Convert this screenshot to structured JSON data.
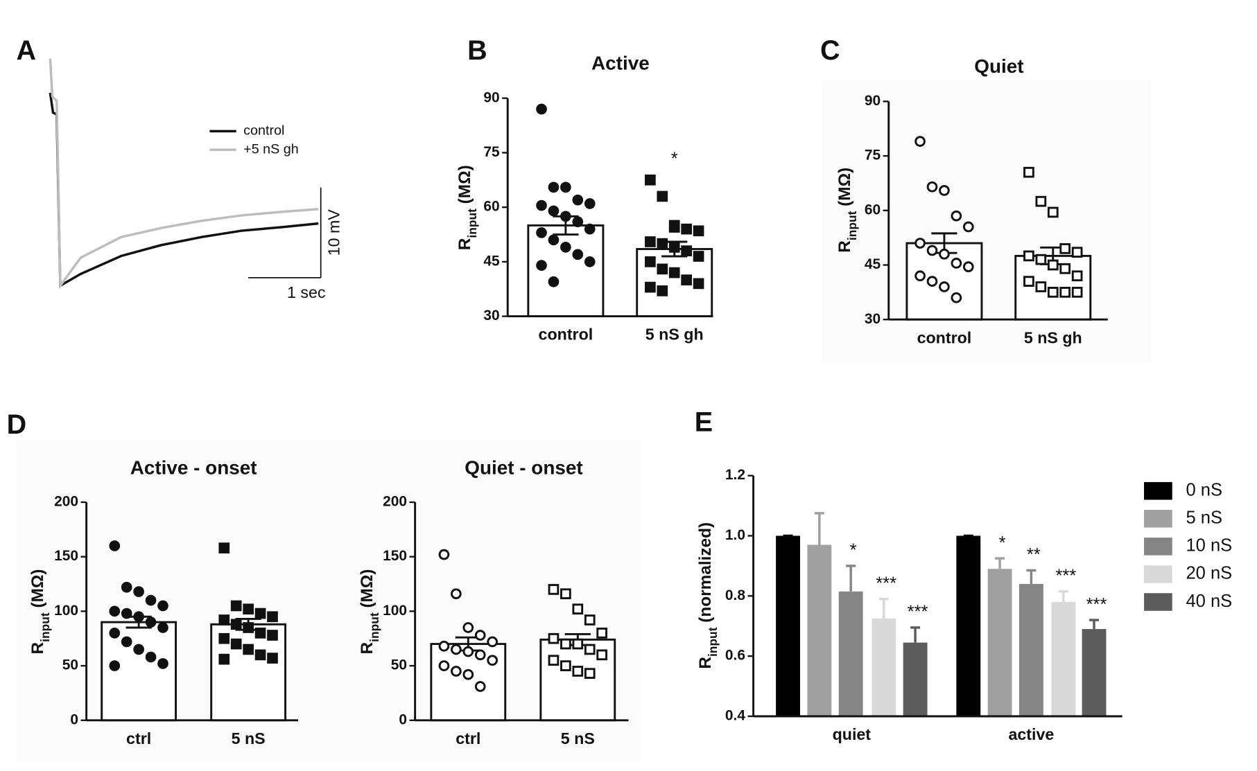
{
  "chart_data": [
    {
      "type": "line",
      "panel": "A",
      "series": [
        {
          "name": "control",
          "color": "#111111",
          "x": [
            0,
            0.04,
            0.09,
            0.14,
            0.42,
            0.98,
            1.53,
            2.09,
            2.64,
            3.2,
            3.7
          ],
          "values": [
            21.4,
            19.2,
            19,
            0,
            1.3,
            3.3,
            4.5,
            5.4,
            6.1,
            6.5,
            6.9
          ]
        },
        {
          "name": "+5 nS gh",
          "color": "#bdbdbd",
          "x": [
            0,
            0.03,
            0.09,
            0.14,
            0.42,
            0.98,
            1.53,
            2.09,
            2.64,
            3.2,
            3.7
          ],
          "values": [
            25.2,
            21,
            20.5,
            0,
            3.1,
            5.4,
            6.4,
            7.2,
            7.8,
            8.2,
            8.5
          ]
        }
      ],
      "scalebar": {
        "x": 1,
        "x_label": "1 sec",
        "y": 10,
        "y_label": "10 mV"
      }
    },
    {
      "type": "bar",
      "panel": "B",
      "title": "Active",
      "ylabel": [
        "R",
        "input",
        " (MΩ)"
      ],
      "categories": [
        "control",
        "5 nS gh"
      ],
      "values": [
        55,
        48.5
      ],
      "errors": [
        2.5,
        2
      ],
      "ylim": [
        30,
        90
      ],
      "yticks": [
        30,
        45,
        60,
        75,
        90
      ],
      "marker": "circle-square",
      "filled": true,
      "points": [
        [
          87,
          65.5,
          65.5,
          62,
          61,
          60.5,
          59,
          57.5,
          56,
          54,
          53,
          51,
          49,
          47,
          45,
          44,
          39.5
        ],
        [
          67.5,
          63,
          55,
          54,
          53.5,
          50.5,
          50,
          49,
          48,
          46.5,
          45,
          43,
          42,
          40,
          39,
          38,
          37,
          54.5
        ]
      ],
      "annotations": [
        null,
        "*"
      ]
    },
    {
      "type": "bar",
      "panel": "C",
      "title": "Quiet",
      "ylabel": [
        "R",
        "input",
        " (MΩ)"
      ],
      "categories": [
        "control",
        "5 nS gh"
      ],
      "values": [
        51,
        47.5
      ],
      "errors": [
        2.7,
        2.3
      ],
      "ylim": [
        30,
        90
      ],
      "yticks": [
        30,
        45,
        60,
        75,
        90
      ],
      "marker": "circle-square",
      "filled": false,
      "points": [
        [
          79,
          66.5,
          65.5,
          58.5,
          55.5,
          51,
          49,
          48,
          45.5,
          44.5,
          42,
          40.5,
          39,
          36
        ],
        [
          70.5,
          62.5,
          59.5,
          49.5,
          48.5,
          47.5,
          46.5,
          45,
          44,
          42,
          40.5,
          39,
          37.5,
          37.5,
          37.5
        ]
      ],
      "annotations": [
        null,
        null
      ]
    },
    {
      "type": "bar",
      "panel": "D",
      "title": "Active - onset",
      "ylabel": [
        "R",
        "input",
        " (MΩ)"
      ],
      "categories": [
        "ctrl",
        "5 nS"
      ],
      "values": [
        90,
        88
      ],
      "errors": [
        5,
        5
      ],
      "ylim": [
        0,
        200
      ],
      "yticks": [
        0,
        50,
        100,
        150,
        200
      ],
      "marker": "circle-square",
      "filled": true,
      "points": [
        [
          160,
          122,
          118,
          110,
          105,
          100,
          98,
          95,
          90,
          85,
          80,
          72,
          65,
          58,
          52,
          50
        ],
        [
          158,
          105,
          102,
          98,
          95,
          92,
          88,
          85,
          80,
          78,
          75,
          70,
          65,
          60,
          57,
          56
        ]
      ],
      "annotations": [
        null,
        null
      ]
    },
    {
      "type": "bar",
      "panel": null,
      "title": "Quiet - onset",
      "ylabel": [
        "R",
        "input",
        " (MΩ)"
      ],
      "categories": [
        "ctrl",
        "5 nS"
      ],
      "values": [
        70,
        74
      ],
      "errors": [
        6,
        5
      ],
      "ylim": [
        0,
        200
      ],
      "yticks": [
        0,
        50,
        100,
        150,
        200
      ],
      "marker": "circle-square",
      "filled": false,
      "points": [
        [
          152,
          116,
          85,
          78,
          72,
          68,
          65,
          63,
          60,
          55,
          50,
          45,
          42,
          31
        ],
        [
          120,
          116,
          102,
          92,
          80,
          75,
          70,
          70,
          65,
          60,
          55,
          50,
          45,
          43
        ]
      ],
      "annotations": [
        null,
        null
      ]
    },
    {
      "type": "groupedbar",
      "panel": "E",
      "ylabel": [
        "R",
        "input",
        " (normalized)"
      ],
      "categories": [
        "quiet",
        "active"
      ],
      "ylim": [
        0.4,
        1.2
      ],
      "yticks": [
        0.4,
        0.6,
        0.8,
        {
          "value": 1,
          "label": "1.0"
        },
        1.2
      ],
      "series": [
        {
          "name": "0 nS",
          "color": "#000000",
          "values": [
            1,
            1
          ],
          "errors": [
            0,
            0
          ],
          "annotations": [
            null,
            null
          ]
        },
        {
          "name": "5 nS",
          "color": "#a0a0a0",
          "values": [
            0.97,
            0.89
          ],
          "errors": [
            0.105,
            0.035
          ],
          "annotations": [
            null,
            "*"
          ]
        },
        {
          "name": "10 nS",
          "color": "#858585",
          "values": [
            0.815,
            0.84
          ],
          "errors": [
            0.085,
            0.045
          ],
          "annotations": [
            "*",
            "**"
          ]
        },
        {
          "name": "20 nS",
          "color": "#d9d9d9",
          "values": [
            0.725,
            0.78
          ],
          "errors": [
            0.065,
            0.035
          ],
          "annotations": [
            "***",
            "***"
          ]
        },
        {
          "name": "40 nS",
          "color": "#5c5c5c",
          "values": [
            0.645,
            0.69
          ],
          "errors": [
            0.05,
            0.03
          ],
          "annotations": [
            "***",
            "***"
          ]
        }
      ]
    }
  ]
}
